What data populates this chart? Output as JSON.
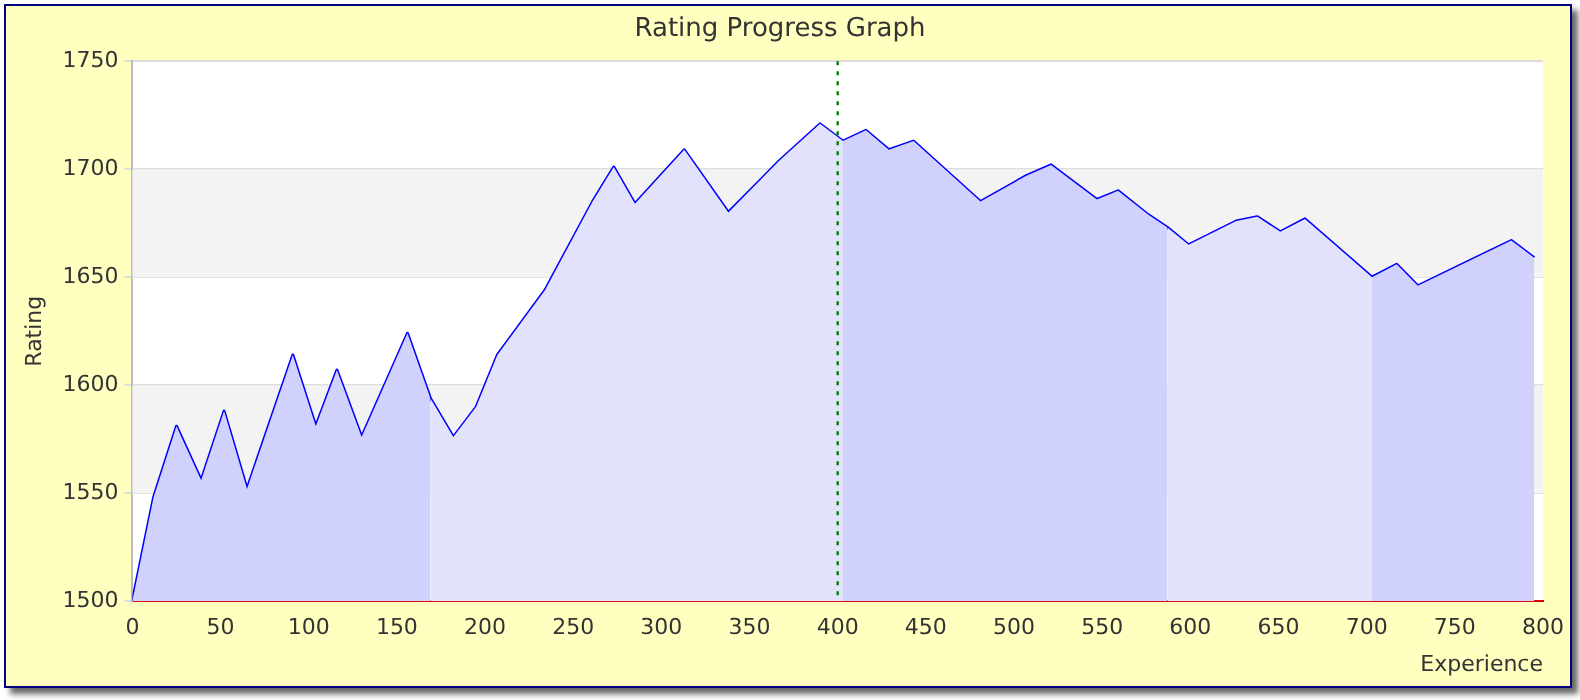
{
  "chart_data": {
    "type": "line",
    "title": "Rating Progress Graph",
    "xlabel": "Experience",
    "ylabel": "Rating",
    "xlim": [
      0,
      800
    ],
    "xticks": [
      0,
      50,
      100,
      150,
      200,
      250,
      300,
      350,
      400,
      450,
      500,
      550,
      600,
      650,
      700,
      750,
      800
    ],
    "ylim": [
      1500,
      1750
    ],
    "yticks": [
      1500,
      1550,
      1600,
      1650,
      1700,
      1750
    ],
    "grid": "y",
    "legend": false,
    "marker": "none",
    "line_style": "solid",
    "series": [
      {
        "type": "area",
        "color": "#d0d1fc",
        "x": [
          0,
          12,
          25,
          39,
          52,
          65,
          91,
          104,
          116,
          130,
          156,
          169
        ],
        "values": [
          1500,
          1548,
          1581,
          1556,
          1588,
          1552,
          1614,
          1581,
          1607,
          1576,
          1624,
          1594
        ]
      },
      {
        "type": "area",
        "color": "#e2e2fc",
        "x": [
          169,
          182,
          195,
          207,
          234,
          261,
          273,
          285,
          313,
          338,
          367,
          390,
          403
        ],
        "values": [
          1594,
          1576,
          1590,
          1614,
          1644,
          1685,
          1701,
          1684,
          1709,
          1680,
          1704,
          1721,
          1713
        ]
      },
      {
        "type": "area",
        "color": "#d0d1fc",
        "x": [
          403,
          416,
          429,
          443,
          481,
          507,
          521,
          547,
          559,
          576,
          587
        ],
        "values": [
          1713,
          1718,
          1709,
          1713,
          1685,
          1697,
          1702,
          1686,
          1690,
          1679,
          1673
        ]
      },
      {
        "type": "area",
        "color": "#e2e2fc",
        "x": [
          587,
          599,
          626,
          638,
          651,
          665,
          703
        ],
        "values": [
          1673,
          1665,
          1676,
          1678,
          1671,
          1677,
          1650
        ]
      },
      {
        "type": "area",
        "color": "#d0d1fc",
        "x": [
          703,
          717,
          729,
          782,
          795
        ],
        "values": [
          1650,
          1656,
          1646,
          1667,
          1659
        ]
      },
      {
        "color": "#0000ff",
        "x": [
          0,
          12,
          25,
          39,
          52,
          65,
          91,
          104,
          116,
          130,
          156,
          169,
          182,
          195,
          207,
          234,
          261,
          273,
          285,
          313,
          338,
          367,
          390,
          403,
          416,
          429,
          443,
          481,
          507,
          521,
          547,
          559,
          576,
          587,
          599,
          626,
          638,
          651,
          665,
          703,
          717,
          729,
          782,
          795
        ],
        "values": [
          1500,
          1548,
          1581,
          1556,
          1588,
          1552,
          1614,
          1581,
          1607,
          1576,
          1624,
          1594,
          1576,
          1590,
          1614,
          1644,
          1685,
          1701,
          1684,
          1709,
          1680,
          1704,
          1721,
          1713,
          1718,
          1709,
          1713,
          1685,
          1697,
          1702,
          1686,
          1690,
          1679,
          1673,
          1665,
          1676,
          1678,
          1671,
          1677,
          1650,
          1656,
          1646,
          1667,
          1659
        ]
      }
    ],
    "ref_lines": [
      {
        "axis": "x",
        "value": 400,
        "color": "#008000",
        "line_style": "dotted"
      }
    ]
  }
}
